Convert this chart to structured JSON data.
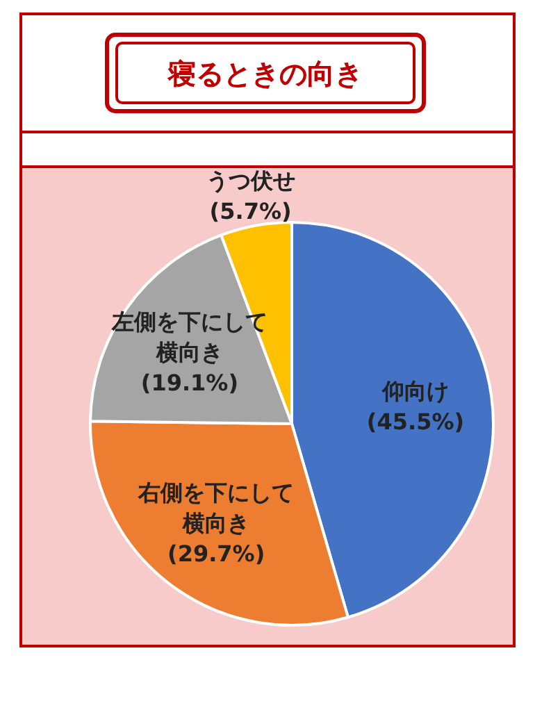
{
  "chart_data": {
    "type": "pie",
    "title": "寝るときの向き",
    "categories": [
      "仰向け",
      "右側を下にして横向き",
      "左側を下にして横向き",
      "うつ伏せ"
    ],
    "values": [
      45.5,
      29.7,
      19.1,
      5.7
    ],
    "colors": [
      "#4472c4",
      "#ed7d31",
      "#a5a5a5",
      "#ffc000"
    ],
    "value_labels": [
      "(45.5%)",
      "(29.7%)",
      "(19.1%)",
      "(5.7%)"
    ]
  }
}
